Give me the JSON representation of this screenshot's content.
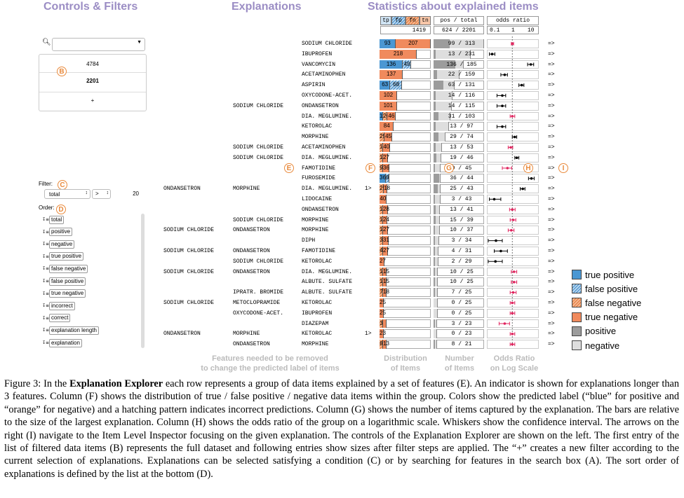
{
  "headers": {
    "controls": "Controls & Filters",
    "explanations": "Explanations",
    "stats": "Statistics about explained items"
  },
  "markers": {
    "A": "A",
    "B": "B",
    "C": "C",
    "D": "D",
    "E": "E",
    "F": "F",
    "G": "G",
    "H": "H",
    "I": "I"
  },
  "controls": {
    "search_value": "",
    "filter_list": [
      {
        "value": "4784",
        "bold": false
      },
      {
        "value": "2201",
        "bold": true
      },
      {
        "value": "+",
        "bold": false
      }
    ],
    "filter_label": "Filter:",
    "filter_select": "total",
    "filter_op": ">",
    "filter_value": "20",
    "order_label": "Order:",
    "order_items": [
      "total",
      "positive",
      "negative",
      "true positive",
      "false negative",
      "false positive",
      "true negative",
      "incorrect",
      "correct",
      "explanation length",
      "explanation"
    ]
  },
  "col_headers": {
    "dist": [
      "tp",
      "fp",
      "fn",
      "tn"
    ],
    "dist_total": "1419",
    "count": "pos / total",
    "count_total": "624 / 2201",
    "odds": "odds ratio",
    "odds_ticks": [
      "0.1",
      "1",
      "10"
    ]
  },
  "colors": {
    "tp": "#4a97d3",
    "fp": "#b9d6ee",
    "fn": "#f4b890",
    "tn": "#f08a5d",
    "pos": "#9c9c9c",
    "neg": "#dedede",
    "marker": "#e98a3c",
    "header": "#9b8dc4",
    "or_red": "#e0245e"
  },
  "rows": [
    {
      "f": [
        "",
        "",
        "SODIUM CHLORIDE"
      ],
      "more": "",
      "tp": 93,
      "fp": 0,
      "fn": 0,
      "tn": 207,
      "ltp": "93",
      "lfp": "",
      "lfn": "",
      "ltn": "207",
      "pos": 99,
      "tot": 313,
      "or": 1.0,
      "lo": 0.9,
      "hi": 1.15,
      "red": true
    },
    {
      "f": [
        "",
        "",
        "IBUPROFEN"
      ],
      "more": "",
      "tp": 0,
      "fp": 0,
      "fn": 0,
      "tn": 218,
      "ltp": "",
      "lfp": "",
      "lfn": "",
      "ltn": "218",
      "pos": 13,
      "tot": 231,
      "or": 0.12,
      "lo": 0.09,
      "hi": 0.16,
      "red": false
    },
    {
      "f": [
        "",
        "",
        "VANCOMYCIN"
      ],
      "more": "",
      "tp": 136,
      "fp": 49,
      "fn": 0,
      "tn": 0,
      "ltp": "136",
      "lfp": "49",
      "lfn": "",
      "ltn": "",
      "pos": 136,
      "tot": 185,
      "or": 7.0,
      "lo": 5.0,
      "hi": 9.5,
      "red": false
    },
    {
      "f": [
        "",
        "",
        "ACETAMINOPHEN"
      ],
      "more": "",
      "tp": 0,
      "fp": 0,
      "fn": 0,
      "tn": 137,
      "ltp": "",
      "lfp": "",
      "lfn": "",
      "ltn": "137",
      "pos": 22,
      "tot": 159,
      "or": 0.45,
      "lo": 0.3,
      "hi": 0.6,
      "red": false
    },
    {
      "f": [
        "",
        "",
        "ASPIRIN"
      ],
      "more": "",
      "tp": 63,
      "fp": 68,
      "fn": 0,
      "tn": 0,
      "ltp": "63",
      "lfp": "68",
      "lfn": "",
      "ltn": "",
      "pos": 63,
      "tot": 131,
      "or": 2.7,
      "lo": 2.0,
      "hi": 3.4,
      "red": false
    },
    {
      "f": [
        "",
        "",
        "OXYCODONE-ACET."
      ],
      "more": "",
      "tp": 0,
      "fp": 0,
      "fn": 0,
      "tn": 102,
      "ltp": "",
      "lfp": "",
      "lfn": "",
      "ltn": "102",
      "pos": 14,
      "tot": 116,
      "or": 0.35,
      "lo": 0.2,
      "hi": 0.5,
      "red": false
    },
    {
      "f": [
        "",
        "SODIUM CHLORIDE",
        "ONDANSETRON"
      ],
      "more": "",
      "tp": 0,
      "fp": 0,
      "fn": 0,
      "tn": 101,
      "ltp": "",
      "lfp": "",
      "lfn": "",
      "ltn": "101",
      "pos": 14,
      "tot": 115,
      "or": 0.35,
      "lo": 0.2,
      "hi": 0.5,
      "red": false
    },
    {
      "f": [
        "",
        "",
        "DIA. MEGLUMINE."
      ],
      "more": "",
      "tp": 19,
      "fp": 0,
      "fn": 26,
      "tn": 46,
      "ltp": "19",
      "lfp": "",
      "lfn": "26",
      "ltn": "46",
      "pos": 31,
      "tot": 103,
      "or": 1.0,
      "lo": 0.8,
      "hi": 1.3,
      "red": true
    },
    {
      "f": [
        "",
        "",
        "KETOROLAC"
      ],
      "more": "",
      "tp": 0,
      "fp": 0,
      "fn": 0,
      "tn": 84,
      "ltp": "",
      "lfp": "",
      "lfn": "",
      "ltn": "84",
      "pos": 13,
      "tot": 97,
      "or": 0.35,
      "lo": 0.2,
      "hi": 0.5,
      "red": false
    },
    {
      "f": [
        "",
        "",
        "MORPHINE"
      ],
      "more": "",
      "tp": 0,
      "fp": 0,
      "fn": 29,
      "tn": 45,
      "ltp": "",
      "lfp": "",
      "lfn": "29",
      "ltn": "45",
      "pos": 29,
      "tot": 74,
      "or": 1.3,
      "lo": 1.0,
      "hi": 1.6,
      "red": false
    },
    {
      "f": [
        "",
        "SODIUM CHLORIDE",
        "ACETAMINOPHEN"
      ],
      "more": "",
      "tp": 0,
      "fp": 0,
      "fn": 13,
      "tn": 40,
      "ltp": "",
      "lfp": "",
      "lfn": "13",
      "ltn": "40",
      "pos": 13,
      "tot": 53,
      "or": 0.85,
      "lo": 0.65,
      "hi": 1.05,
      "red": true
    },
    {
      "f": [
        "",
        "SODIUM CHLORIDE",
        "DIA. MEGLUMINE."
      ],
      "more": "",
      "tp": 0,
      "fp": 0,
      "fn": 19,
      "tn": 27,
      "ltp": "",
      "lfp": "",
      "lfn": "19",
      "ltn": "27",
      "pos": 19,
      "tot": 46,
      "or": 1.6,
      "lo": 1.3,
      "hi": 2.0,
      "red": false
    },
    {
      "f": [
        "",
        "",
        "FAMOTIDINE"
      ],
      "more": "",
      "tp": 0,
      "fp": 0,
      "fn": 9,
      "tn": 36,
      "ltp": "",
      "lfp": "",
      "lfn": "9",
      "ltn": "36",
      "pos": 9,
      "tot": 45,
      "or": 0.6,
      "lo": 0.35,
      "hi": 0.95,
      "red": true
    },
    {
      "f": [
        "",
        "",
        "FUROSEMIDE"
      ],
      "more": "",
      "tp": 36,
      "fp": 8,
      "fn": 0,
      "tn": 0,
      "ltp": "36",
      "lfp": "8",
      "lfn": "",
      "ltn": "",
      "pos": 36,
      "tot": 44,
      "or": 7.5,
      "lo": 5.5,
      "hi": 10.0,
      "red": false
    },
    {
      "f": [
        "ONDANSETRON",
        "MORPHINE",
        "DIA. MEGLUMINE."
      ],
      "more": "1>",
      "tp": 0,
      "fp": 0,
      "fn": 25,
      "tn": 18,
      "ltp": "",
      "lfp": "",
      "lfn": "25",
      "ltn": "18",
      "pos": 25,
      "tot": 43,
      "or": 3.0,
      "lo": 2.3,
      "hi": 3.8,
      "red": false
    },
    {
      "f": [
        "",
        "",
        "LIDOCAINE"
      ],
      "more": "",
      "tp": 0,
      "fp": 0,
      "fn": 0,
      "tn": 40,
      "ltp": "",
      "lfp": "",
      "lfn": "",
      "ltn": "40",
      "pos": 3,
      "tot": 43,
      "or": 0.15,
      "lo": 0.09,
      "hi": 0.3,
      "red": false
    },
    {
      "f": [
        "",
        "",
        "ONDANSETRON"
      ],
      "more": "",
      "tp": 0,
      "fp": 0,
      "fn": 13,
      "tn": 28,
      "ltp": "",
      "lfp": "",
      "lfn": "13",
      "ltn": "28",
      "pos": 13,
      "tot": 41,
      "or": 1.0,
      "lo": 0.75,
      "hi": 1.35,
      "red": true
    },
    {
      "f": [
        "",
        "SODIUM CHLORIDE",
        "MORPHINE"
      ],
      "more": "",
      "tp": 0,
      "fp": 0,
      "fn": 15,
      "tn": 24,
      "ltp": "",
      "lfp": "",
      "lfn": "15",
      "ltn": "24",
      "pos": 15,
      "tot": 39,
      "or": 1.1,
      "lo": 0.8,
      "hi": 1.45,
      "red": true
    },
    {
      "f": [
        "SODIUM CHLORIDE",
        "ONDANSETRON",
        "MORPHINE"
      ],
      "more": "",
      "tp": 0,
      "fp": 0,
      "fn": 10,
      "tn": 27,
      "ltp": "",
      "lfp": "",
      "lfn": "10",
      "ltn": "27",
      "pos": 10,
      "tot": 37,
      "or": 0.9,
      "lo": 0.65,
      "hi": 1.2,
      "red": true
    },
    {
      "f": [
        "",
        "",
        "DIPH"
      ],
      "more": "",
      "tp": 0,
      "fp": 0,
      "fn": 3,
      "tn": 31,
      "ltp": "",
      "lfp": "",
      "lfn": "3",
      "ltn": "31",
      "pos": 3,
      "tot": 34,
      "or": 0.18,
      "lo": 0.08,
      "hi": 0.35,
      "red": false
    },
    {
      "f": [
        "SODIUM CHLORIDE",
        "ONDANSETRON",
        "FAMOTIDINE"
      ],
      "more": "",
      "tp": 0,
      "fp": 0,
      "fn": 4,
      "tn": 27,
      "ltp": "",
      "lfp": "",
      "lfn": "4",
      "ltn": "27",
      "pos": 4,
      "tot": 31,
      "or": 0.3,
      "lo": 0.15,
      "hi": 0.6,
      "red": false
    },
    {
      "f": [
        "",
        "SODIUM CHLORIDE",
        "KETOROLAC"
      ],
      "more": "",
      "tp": 0,
      "fp": 0,
      "fn": 0,
      "tn": 27,
      "ltp": "",
      "lfp": "",
      "lfn": "",
      "ltn": "27",
      "pos": 2,
      "tot": 29,
      "or": 0.17,
      "lo": 0.08,
      "hi": 0.35,
      "red": false
    },
    {
      "f": [
        "SODIUM CHLORIDE",
        "ONDANSETRON",
        "DIA. MEGLUMINE."
      ],
      "more": "",
      "tp": 0,
      "fp": 0,
      "fn": 10,
      "tn": 15,
      "ltp": "",
      "lfp": "",
      "lfn": "10",
      "ltn": "15",
      "pos": 10,
      "tot": 25,
      "or": 1.2,
      "lo": 0.9,
      "hi": 1.6,
      "red": true
    },
    {
      "f": [
        "",
        "",
        "ALBUTE. SULFATE"
      ],
      "more": "",
      "tp": 0,
      "fp": 0,
      "fn": 10,
      "tn": 15,
      "ltp": "",
      "lfp": "",
      "lfn": "10",
      "ltn": "15",
      "pos": 10,
      "tot": 25,
      "or": 1.2,
      "lo": 0.9,
      "hi": 1.6,
      "red": true
    },
    {
      "f": [
        "",
        "IPRATR. BROMIDE",
        "ALBUTE. SULFATE"
      ],
      "more": "",
      "tp": 0,
      "fp": 0,
      "fn": 7,
      "tn": 18,
      "ltp": "",
      "lfp": "",
      "lfn": "7",
      "ltn": "18",
      "pos": 7,
      "tot": 25,
      "or": 1.1,
      "lo": 0.8,
      "hi": 1.5,
      "red": true
    },
    {
      "f": [
        "SODIUM CHLORIDE",
        "METOCLOPRAMIDE",
        "KETOROLAC"
      ],
      "more": "",
      "tp": 0,
      "fp": 0,
      "fn": 0,
      "tn": 25,
      "ltp": "",
      "lfp": "",
      "lfn": "",
      "ltn": "25",
      "pos": 0,
      "tot": 25,
      "or": 1.0,
      "lo": 0.8,
      "hi": 1.3,
      "red": true
    },
    {
      "f": [
        "",
        "OXYCODONE-ACET.",
        "IBUPROFEN"
      ],
      "more": "",
      "tp": 0,
      "fp": 0,
      "fn": 0,
      "tn": 25,
      "ltp": "",
      "lfp": "",
      "lfn": "",
      "ltn": "25",
      "pos": 0,
      "tot": 25,
      "or": 1.0,
      "lo": 0.8,
      "hi": 1.3,
      "red": true
    },
    {
      "f": [
        "",
        "",
        "DIAZEPAM"
      ],
      "more": "",
      "tp": 0,
      "fp": 0,
      "fn": 3,
      "tn": 20,
      "ltp": "",
      "lfp": "",
      "lfn": "3",
      "ltn": "",
      "pos": 3,
      "tot": 23,
      "or": 0.45,
      "lo": 0.25,
      "hi": 0.75,
      "red": true
    },
    {
      "f": [
        "ONDANSETRON",
        "MORPHINE",
        "KETOROLAC"
      ],
      "more": "1>",
      "tp": 0,
      "fp": 0,
      "fn": 0,
      "tn": 23,
      "ltp": "",
      "lfp": "",
      "lfn": "",
      "ltn": "23",
      "pos": 0,
      "tot": 23,
      "or": 1.0,
      "lo": 0.8,
      "hi": 1.3,
      "red": true
    },
    {
      "f": [
        "",
        "ONDANSETRON",
        "MORPHINE"
      ],
      "more": "",
      "tp": 0,
      "fp": 0,
      "fn": 8,
      "tn": 13,
      "ltp": "",
      "lfp": "",
      "lfn": "8",
      "ltn": "13",
      "pos": 8,
      "tot": 21,
      "or": 1.0,
      "lo": 0.8,
      "hi": 1.3,
      "red": true
    }
  ],
  "arrow": "=>",
  "footers": {
    "features_line1": "Features needed to be removed",
    "features_line2": "to change the predicted label of items",
    "dist_line1": "Distribution",
    "dist_line2": "of Items",
    "num_line1": "Number",
    "num_line2": "of Items",
    "odds_line1": "Odds Ratio",
    "odds_line2": "on Log Scale"
  },
  "legend": [
    {
      "label": "true positive",
      "cls": "solid-blue"
    },
    {
      "label": "false positive",
      "cls": "hatch-blue"
    },
    {
      "label": "false negative",
      "cls": "hatch-orange"
    },
    {
      "label": "true negative",
      "cls": "solid-orange"
    },
    {
      "label": "positive",
      "cls": "gray-dark"
    },
    {
      "label": "negative",
      "cls": "gray-light"
    }
  ],
  "caption": {
    "p1": "Figure 3: In the ",
    "bold": "Explanation Explorer",
    "p2": " each row represents a group of data items explained by a set of features (E). An indicator is shown for explanations longer than 3 features. Column (F) shows the distribution of true / false positive / negative data items within the group. Colors show the predicted label (“blue” for positive and “orange” for negative) and a hatching pattern indicates incorrect predictions. Column (G) shows the number of items captured by the explanation. The bars are relative to the size of the largest explanation. Column (H) shows the odds ratio of the group on a logarithmic scale. Whiskers show the confidence interval. The arrows on the right (I) navigate to the Item Level Inspector focusing on the given explanation. The controls of the Explanation Explorer are shown on the left. The first entry of the list of filtered data items (B) represents the full dataset and following entries show sizes after filter steps are applied. The “+” creates a new filter according to the current selection of explanations. Explanations can be selected satisfying a condition (C) or by searching for features in the search box (A). The sort order of explanations is defined by the list at the bottom (D)."
  }
}
